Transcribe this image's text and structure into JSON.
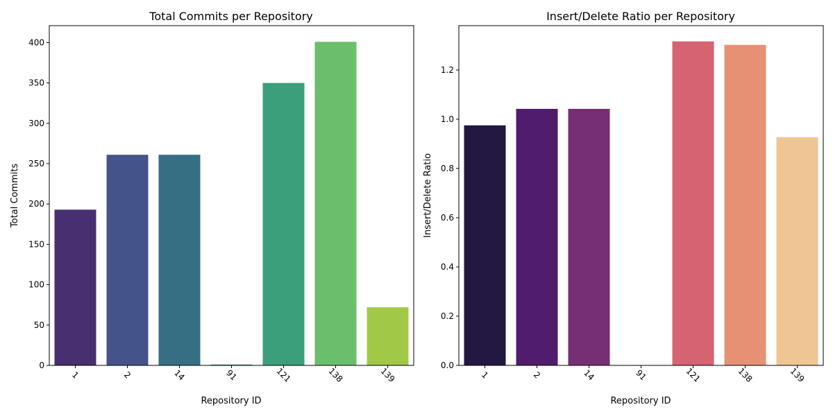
{
  "chart_data": [
    {
      "type": "bar",
      "title": "Total Commits per Repository",
      "xlabel": "Repository ID",
      "ylabel": "Total Commits",
      "categories": [
        "1",
        "2",
        "14",
        "91",
        "121",
        "138",
        "139"
      ],
      "values": [
        193,
        261,
        261,
        1,
        350,
        401,
        72
      ],
      "ylim": [
        0,
        421
      ],
      "yticks": [
        0,
        50,
        100,
        150,
        200,
        250,
        300,
        350,
        400
      ],
      "ytick_labels": [
        "0",
        "50",
        "100",
        "150",
        "200",
        "250",
        "300",
        "350",
        "400"
      ],
      "grid": false,
      "colors": [
        "#482f6f",
        "#44548a",
        "#366e84",
        "#287d7c",
        "#3b9f7b",
        "#6bbf6c",
        "#a2c847"
      ]
    },
    {
      "type": "bar",
      "title": "Insert/Delete Ratio per Repository",
      "xlabel": "Repository ID",
      "ylabel": "Insert/Delete Ratio",
      "categories": [
        "1",
        "2",
        "14",
        "91",
        "121",
        "138",
        "139"
      ],
      "values": [
        0.975,
        1.042,
        1.042,
        0.0,
        1.316,
        1.302,
        0.927
      ],
      "ylim": [
        0,
        1.38
      ],
      "yticks": [
        0.0,
        0.2,
        0.4,
        0.6,
        0.8,
        1.0,
        1.2
      ],
      "ytick_labels": [
        "0.0",
        "0.2",
        "0.4",
        "0.6",
        "0.8",
        "1.0",
        "1.2"
      ],
      "grid": false,
      "colors": [
        "#221842",
        "#501d6c",
        "#762e74",
        "#a0377a",
        "#d56371",
        "#e79174",
        "#f0c594"
      ]
    }
  ]
}
